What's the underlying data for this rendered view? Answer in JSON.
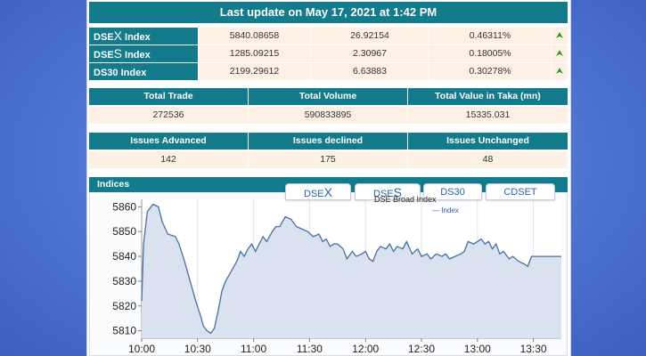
{
  "header": {
    "title": "Last update on May 17, 2021 at 1:42 PM"
  },
  "indices": [
    {
      "prefix": "DSE",
      "big": "X",
      "suffix": " Index",
      "value": "5840.08658",
      "change": "26.92154",
      "percent": "0.46311%",
      "trend_icon": "double-chevron-up"
    },
    {
      "prefix": "DSE",
      "big": "S",
      "suffix": " Index",
      "value": "1285.09215",
      "change": "2.30967",
      "percent": "0.18005%",
      "trend_icon": "double-chevron-up"
    },
    {
      "prefix": "DS30",
      "big": "",
      "suffix": " Index",
      "value": "2199.29612",
      "change": "6.63883",
      "percent": "0.30278%",
      "trend_icon": "double-chevron-up"
    }
  ],
  "trade_stats": {
    "headers": [
      "Total Trade",
      "Total Volume",
      "Total Value in Taka (mn)"
    ],
    "values": [
      "272536",
      "590833895",
      "15335.031"
    ]
  },
  "issue_stats": {
    "headers": [
      "Issues Advanced",
      "Issues declined",
      "Issues Unchanged"
    ],
    "values": [
      "142",
      "175",
      "48"
    ]
  },
  "indices_section": {
    "label": "Indices",
    "tabs": [
      {
        "prefix": "DSE",
        "big": "X",
        "active": true
      },
      {
        "prefix": "DSE",
        "big": "S",
        "active": false
      },
      {
        "prefix": "DS30",
        "big": "",
        "active": false
      },
      {
        "prefix": "CDSET",
        "big": "",
        "active": false
      }
    ]
  },
  "colors": {
    "teal": "#137b8b",
    "cell_bg": "#fdf1e6",
    "line": "#4a6fa5",
    "area": "#d9e2ee",
    "up_arrow": "#2b9a2b"
  },
  "chart_data": {
    "type": "area",
    "title": "DSE Broad Index",
    "legend": [
      "Index"
    ],
    "x_ticks": [
      "10:00",
      "10:30",
      "11:00",
      "11:30",
      "12:00",
      "12:30",
      "13:00",
      "13:30"
    ],
    "y_ticks": [
      5810,
      5820,
      5830,
      5840,
      5850,
      5860
    ],
    "ylim": [
      5807,
      5863
    ],
    "xlim_minutes": [
      0,
      225
    ],
    "series": [
      {
        "name": "Index",
        "x_minutes": [
          0,
          1,
          3,
          6,
          9,
          11,
          14,
          18,
          20,
          23,
          26,
          29,
          32,
          33,
          35,
          37,
          39,
          41,
          43,
          45,
          48,
          51,
          53,
          55,
          57,
          59,
          61,
          63,
          65,
          67,
          70,
          72,
          74,
          77,
          80,
          83,
          86,
          89,
          92,
          95,
          97,
          99,
          101,
          103,
          105,
          108,
          110,
          113,
          115,
          118,
          120,
          122,
          124,
          126,
          128,
          131,
          133,
          135,
          137,
          140,
          142,
          145,
          148,
          150,
          153,
          155,
          158,
          161,
          163,
          165,
          168,
          171,
          173,
          175,
          178,
          180,
          182,
          184,
          186,
          188,
          190,
          192,
          194,
          197,
          199,
          202,
          205,
          207,
          209,
          211,
          225
        ],
        "values": [
          5822,
          5845,
          5858,
          5861,
          5860,
          5854,
          5849,
          5848,
          5845,
          5838,
          5830,
          5822,
          5815,
          5812,
          5810,
          5809,
          5811,
          5818,
          5826,
          5830,
          5834,
          5838,
          5842,
          5840,
          5843,
          5845,
          5842,
          5845,
          5848,
          5846,
          5850,
          5852,
          5852,
          5856,
          5855,
          5852,
          5851,
          5850,
          5848,
          5849,
          5846,
          5847,
          5844,
          5845,
          5845,
          5843,
          5839,
          5842,
          5840,
          5841,
          5842,
          5839,
          5838,
          5842,
          5844,
          5843,
          5845,
          5842,
          5844,
          5843,
          5846,
          5841,
          5843,
          5840,
          5841,
          5839,
          5841,
          5840,
          5841,
          5839,
          5840,
          5841,
          5842,
          5846,
          5845,
          5846,
          5847,
          5845,
          5846,
          5843,
          5845,
          5841,
          5842,
          5839,
          5840,
          5838,
          5837,
          5836,
          5840,
          5840,
          5840
        ]
      }
    ],
    "grid": "vertical"
  }
}
